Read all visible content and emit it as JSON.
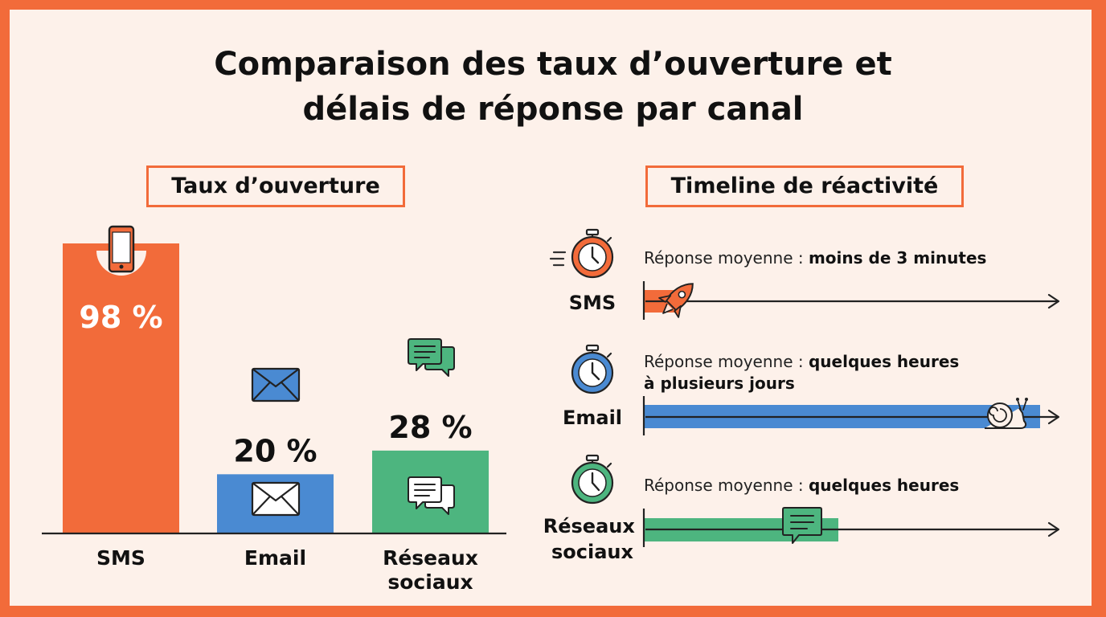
{
  "title_line1": "Comparaison des taux d’ouverture et",
  "title_line2": "délais de réponse par canal",
  "open_rate_heading": "Taux d’ouverture",
  "timeline_heading": "Timeline de réactivité",
  "colors": {
    "frame": "#f26b3a",
    "background": "#fdf1ea",
    "sms": "#f26b3a",
    "email": "#4a8ad2",
    "social": "#4db57f"
  },
  "chart_data": {
    "type": "bar",
    "title": "Taux d’ouverture",
    "categories": [
      "SMS",
      "Email",
      "Réseaux sociaux"
    ],
    "category_lines": [
      [
        "SMS"
      ],
      [
        "Email"
      ],
      [
        "Réseaux",
        "sociaux"
      ]
    ],
    "values": [
      98,
      20,
      28
    ],
    "value_labels": [
      "98 %",
      "20 %",
      "28 %"
    ],
    "unit": "%",
    "ylim": [
      0,
      100
    ],
    "icons": [
      "smartphone-icon",
      "envelope-icon",
      "chat-bubbles-icon"
    ],
    "colors": [
      "#f26b3a",
      "#4a8ad2",
      "#4db57f"
    ]
  },
  "timeline": {
    "items": [
      {
        "label_lines": [
          "SMS"
        ],
        "prefix": "Réponse moyenne : ",
        "response_lines": [
          "moins de 3 minutes"
        ],
        "marker_icon": "rocket-icon",
        "color": "#f26b3a"
      },
      {
        "label_lines": [
          "Email"
        ],
        "prefix": "Réponse moyenne : ",
        "response_lines": [
          "quelques heures",
          "à plusieurs jours"
        ],
        "marker_icon": "snail-icon",
        "color": "#4a8ad2"
      },
      {
        "label_lines": [
          "Réseaux",
          "sociaux"
        ],
        "prefix": "Réponse moyenne : ",
        "response_lines": [
          "quelques heures"
        ],
        "marker_icon": "chat-bubble-icon",
        "color": "#4db57f"
      }
    ]
  }
}
